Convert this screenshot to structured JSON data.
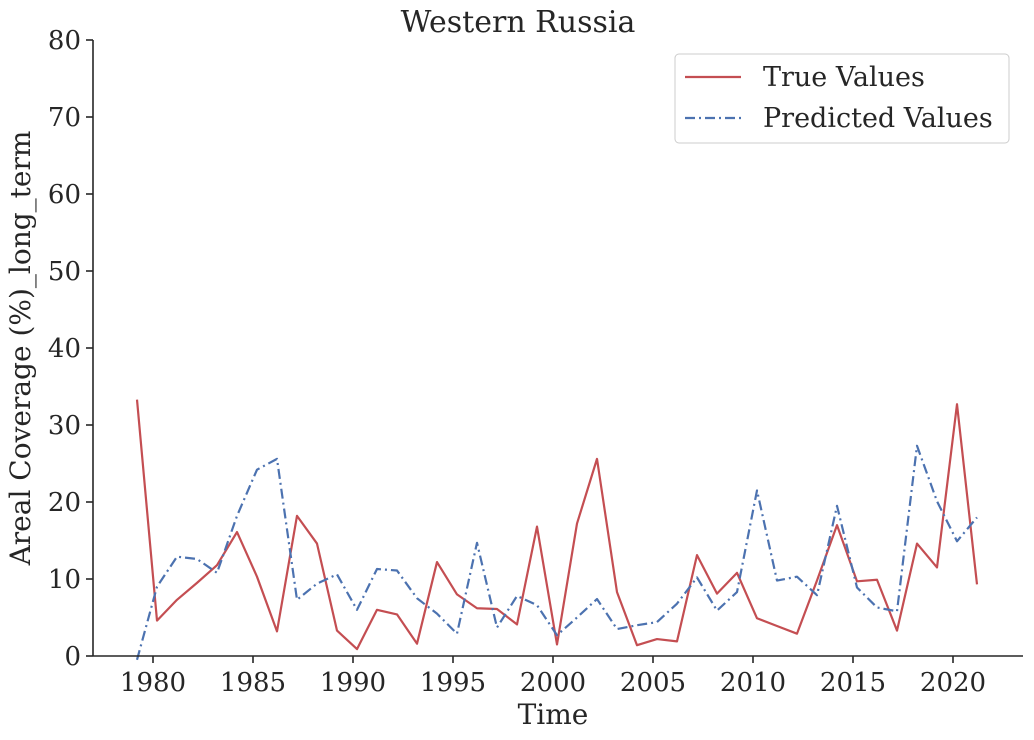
{
  "chart_data": {
    "type": "line",
    "title": "Western Russia",
    "xlabel": "Time",
    "ylabel": "Areal Coverage (%)_long_term",
    "xlim": [
      1977,
      2023.5
    ],
    "ylim": [
      0,
      80
    ],
    "xticks": [
      1980,
      1985,
      1990,
      1995,
      2000,
      2005,
      2010,
      2015,
      2020
    ],
    "yticks": [
      0,
      10,
      20,
      30,
      40,
      50,
      60,
      70,
      80
    ],
    "grid": false,
    "legend_position": "top-right",
    "x": [
      1979.2,
      1980.2,
      1981.2,
      1982.2,
      1983.2,
      1984.2,
      1985.2,
      1986.2,
      1987.2,
      1988.2,
      1989.2,
      1990.2,
      1991.2,
      1992.2,
      1993.2,
      1994.2,
      1995.2,
      1996.2,
      1997.2,
      1998.2,
      1999.2,
      2000.2,
      2001.2,
      2002.2,
      2003.2,
      2004.2,
      2005.2,
      2006.2,
      2007.2,
      2008.2,
      2009.2,
      2010.2,
      2011.2,
      2012.2,
      2013.2,
      2014.2,
      2015.2,
      2016.2,
      2017.2,
      2018.2,
      2019.2,
      2020.2,
      2021.2
    ],
    "series": [
      {
        "name": "True Values",
        "color": "#c44e52",
        "style": "solid",
        "values": [
          33.3,
          4.6,
          7.3,
          9.5,
          11.8,
          16.1,
          10.3,
          3.2,
          18.2,
          14.6,
          3.3,
          0.9,
          6.0,
          5.4,
          1.6,
          12.2,
          8.0,
          6.2,
          6.1,
          4.1,
          16.8,
          1.5,
          17.2,
          25.6,
          8.3,
          1.4,
          2.2,
          1.9,
          13.1,
          8.1,
          10.8,
          4.9,
          3.9,
          2.9,
          9.8,
          17.0,
          9.7,
          9.9,
          3.3,
          14.6,
          11.5,
          32.7,
          9.3
        ]
      },
      {
        "name": "Predicted Values",
        "color": "#4c72b0",
        "style": "dashdot",
        "values": [
          -0.5,
          9.0,
          12.9,
          12.6,
          10.8,
          18.2,
          24.2,
          25.6,
          7.3,
          9.4,
          10.6,
          6.0,
          11.3,
          11.1,
          7.5,
          5.5,
          2.9,
          14.7,
          3.7,
          7.8,
          6.6,
          2.7,
          5.0,
          7.4,
          3.5,
          4.0,
          4.4,
          6.8,
          10.2,
          5.9,
          8.3,
          21.5,
          9.8,
          10.3,
          7.9,
          19.5,
          8.9,
          6.3,
          5.8,
          27.3,
          20.1,
          14.9,
          18.0
        ]
      }
    ]
  }
}
